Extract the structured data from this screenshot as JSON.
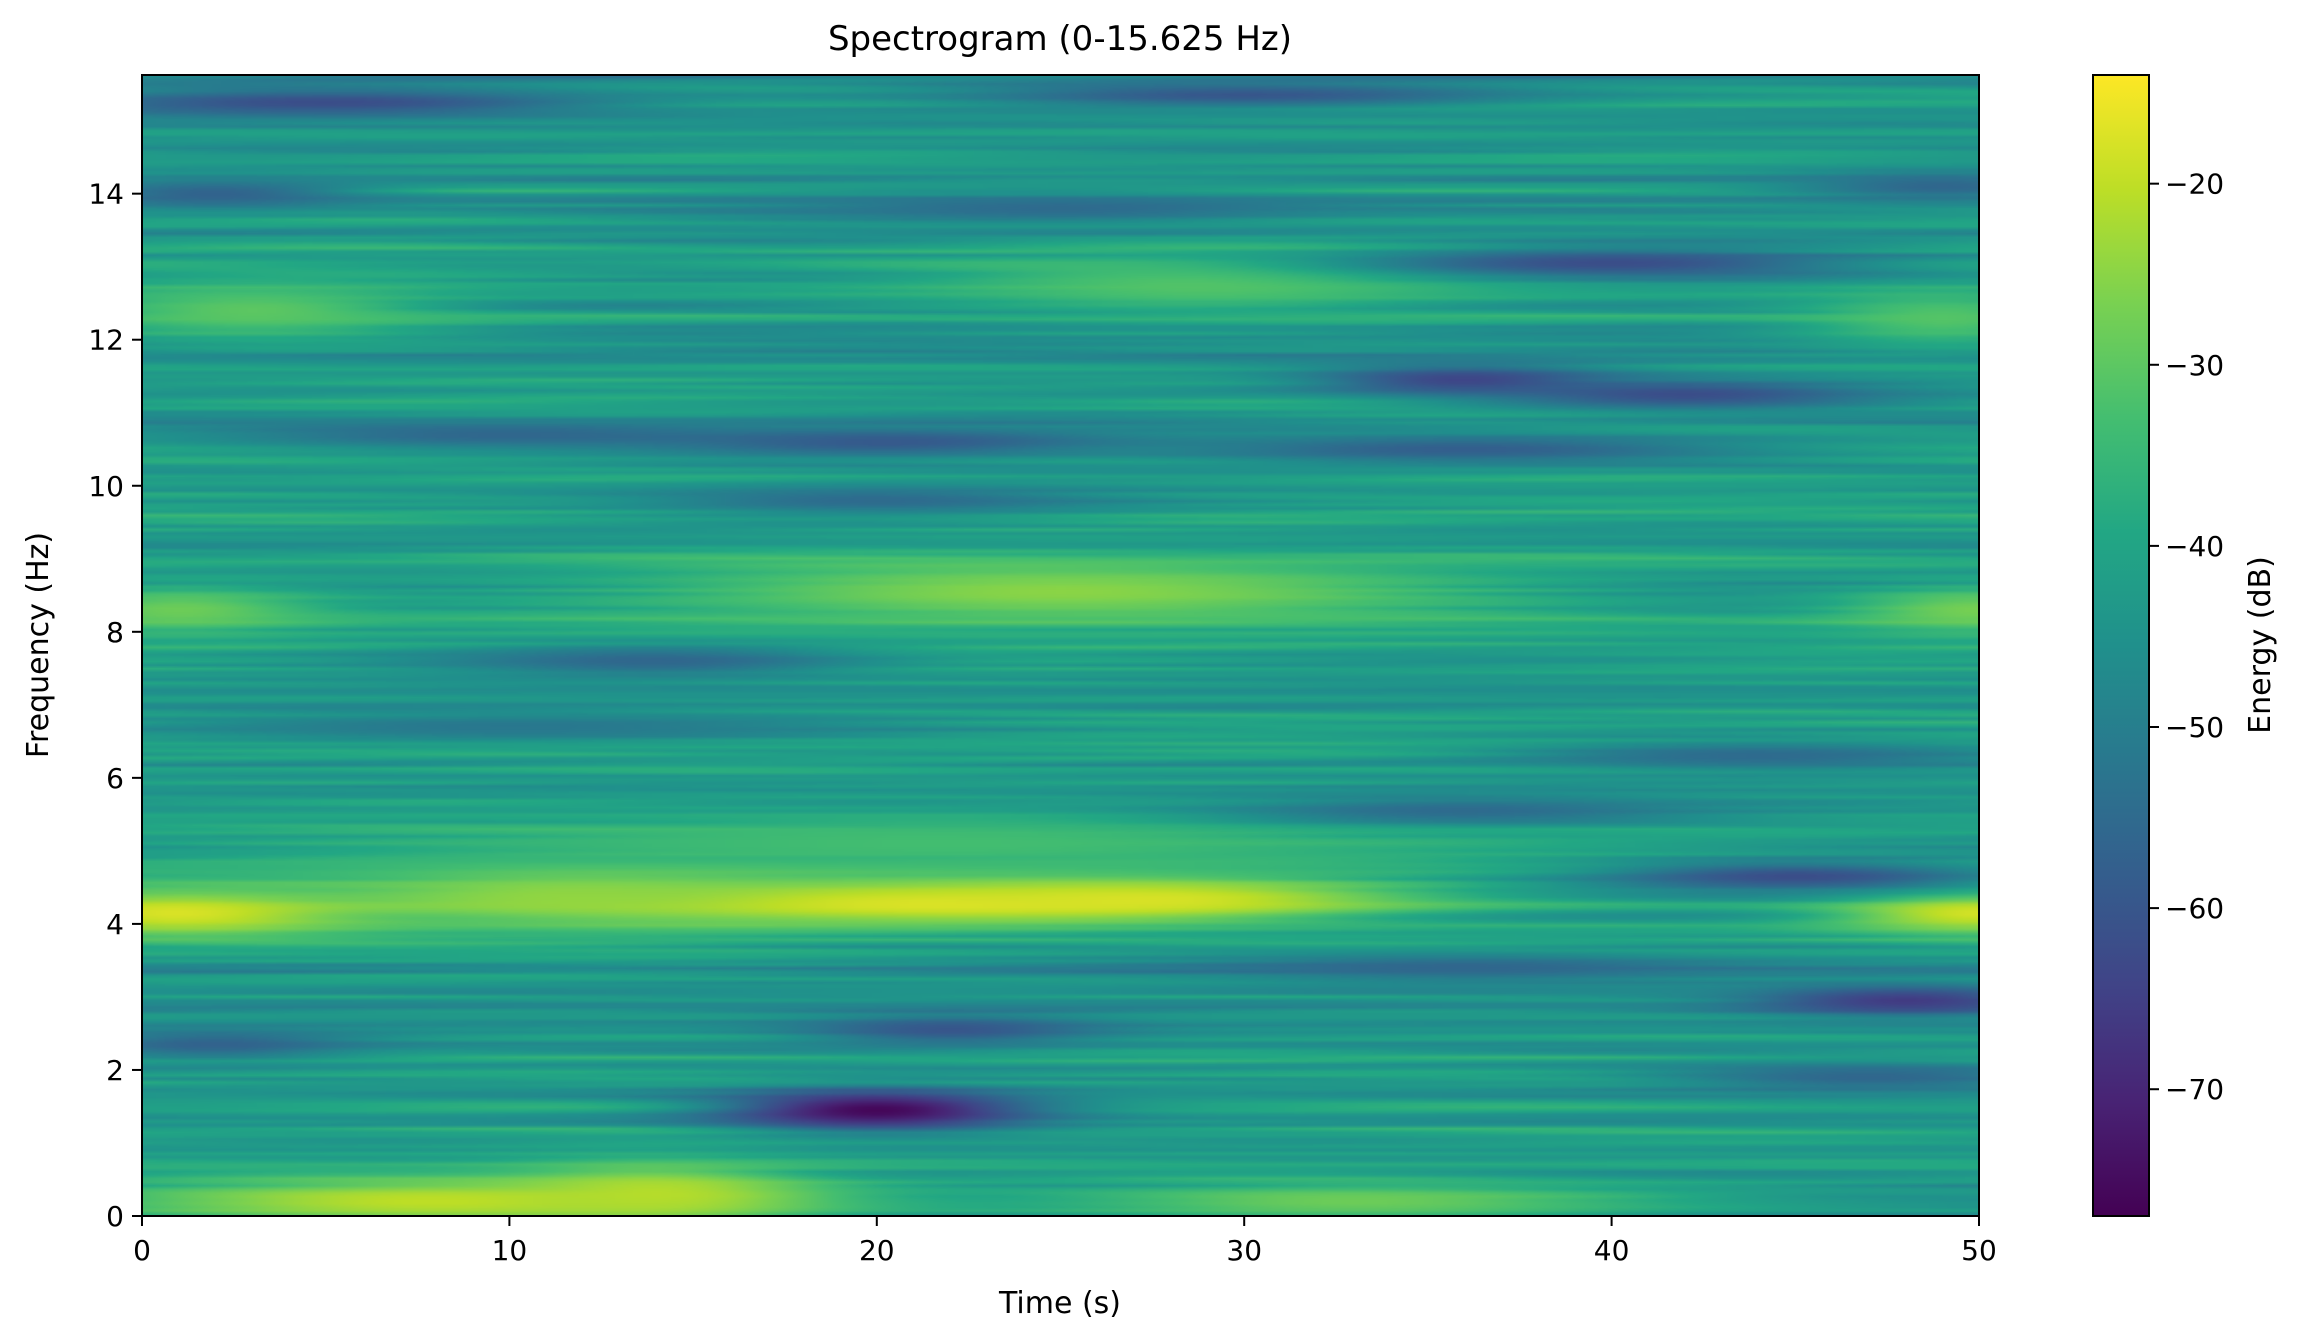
{
  "chart_data": {
    "type": "heatmap",
    "title": "Spectrogram (0-15.625 Hz)",
    "xlabel": "Time (s)",
    "ylabel": "Frequency (Hz)",
    "xlim": [
      0,
      50
    ],
    "ylim": [
      0,
      15.625
    ],
    "x_ticks": [
      0,
      10,
      20,
      30,
      40,
      50
    ],
    "y_ticks": [
      0,
      2,
      4,
      6,
      8,
      10,
      12,
      14
    ],
    "colormap": "viridis",
    "colorbar": {
      "label": "Energy (dB)",
      "range": [
        -77,
        -14
      ],
      "ticks": [
        -20,
        -30,
        -40,
        -50,
        -60,
        -70
      ],
      "tick_labels": [
        "−20",
        "−30",
        "−40",
        "−50",
        "−60",
        "−70"
      ]
    },
    "background_db": -43,
    "features": [
      {
        "t": 20,
        "f": 4.3,
        "dt": 8,
        "df": 0.22,
        "db": -14
      },
      {
        "t": 27,
        "f": 4.35,
        "dt": 5,
        "df": 0.2,
        "db": -17
      },
      {
        "t": 1,
        "f": 4.15,
        "dt": 4,
        "df": 0.25,
        "db": -17
      },
      {
        "t": 50,
        "f": 4.15,
        "dt": 3,
        "df": 0.22,
        "db": -18
      },
      {
        "t": 12,
        "f": 4.4,
        "dt": 5,
        "df": 0.3,
        "db": -24
      },
      {
        "t": 8,
        "f": 0.2,
        "dt": 7,
        "df": 0.25,
        "db": -20
      },
      {
        "t": 14,
        "f": 0.3,
        "dt": 3,
        "df": 0.3,
        "db": -21
      },
      {
        "t": 33,
        "f": 0.2,
        "dt": 6,
        "df": 0.2,
        "db": -28
      },
      {
        "t": 25,
        "f": 8.55,
        "dt": 9,
        "df": 0.35,
        "db": -25
      },
      {
        "t": 1,
        "f": 8.3,
        "dt": 3,
        "df": 0.25,
        "db": -28
      },
      {
        "t": 50,
        "f": 8.3,
        "dt": 3,
        "df": 0.25,
        "db": -27
      },
      {
        "t": 3,
        "f": 12.4,
        "dt": 4,
        "df": 0.3,
        "db": -30
      },
      {
        "t": 29,
        "f": 12.75,
        "dt": 6,
        "df": 0.3,
        "db": -31
      },
      {
        "t": 49,
        "f": 12.3,
        "dt": 3,
        "df": 0.3,
        "db": -31
      },
      {
        "t": 22,
        "f": 5.1,
        "dt": 14,
        "df": 0.3,
        "db": -33
      },
      {
        "t": 20,
        "f": 1.45,
        "dt": 3,
        "df": 0.2,
        "db": -76
      },
      {
        "t": 22,
        "f": 2.55,
        "dt": 3,
        "df": 0.15,
        "db": -60
      },
      {
        "t": 36,
        "f": 11.45,
        "dt": 3,
        "df": 0.15,
        "db": -64
      },
      {
        "t": 42,
        "f": 11.25,
        "dt": 4,
        "df": 0.15,
        "db": -62
      },
      {
        "t": 40,
        "f": 13.05,
        "dt": 5,
        "df": 0.15,
        "db": -62
      },
      {
        "t": 48,
        "f": 2.95,
        "dt": 3,
        "df": 0.15,
        "db": -66
      },
      {
        "t": 45,
        "f": 4.65,
        "dt": 4,
        "df": 0.15,
        "db": -62
      },
      {
        "t": 5,
        "f": 15.25,
        "dt": 6,
        "df": 0.15,
        "db": -62
      },
      {
        "t": 30,
        "f": 15.35,
        "dt": 6,
        "df": 0.12,
        "db": -60
      },
      {
        "t": 20,
        "f": 10.6,
        "dt": 5,
        "df": 0.15,
        "db": -60
      },
      {
        "t": 36,
        "f": 10.5,
        "dt": 6,
        "df": 0.15,
        "db": -58
      },
      {
        "t": 10,
        "f": 10.7,
        "dt": 6,
        "df": 0.15,
        "db": -56
      },
      {
        "t": 2,
        "f": 2.35,
        "dt": 3,
        "df": 0.15,
        "db": -57
      },
      {
        "t": 2,
        "f": 14.0,
        "dt": 3,
        "df": 0.15,
        "db": -57
      },
      {
        "t": 49,
        "f": 14.1,
        "dt": 3,
        "df": 0.15,
        "db": -56
      },
      {
        "t": 14,
        "f": 7.6,
        "dt": 4,
        "df": 0.15,
        "db": -56
      },
      {
        "t": 36,
        "f": 3.4,
        "dt": 6,
        "df": 0.15,
        "db": -56
      },
      {
        "t": 44,
        "f": 6.3,
        "dt": 5,
        "df": 0.15,
        "db": -55
      },
      {
        "t": 47,
        "f": 1.9,
        "dt": 4,
        "df": 0.15,
        "db": -56
      },
      {
        "t": 20,
        "f": 9.8,
        "dt": 5,
        "df": 0.15,
        "db": -55
      },
      {
        "t": 36,
        "f": 5.55,
        "dt": 5,
        "df": 0.15,
        "db": -55
      },
      {
        "t": 10,
        "f": 6.7,
        "dt": 8,
        "df": 0.15,
        "db": -52
      },
      {
        "t": 25,
        "f": 13.8,
        "dt": 6,
        "df": 0.15,
        "db": -55
      }
    ]
  }
}
